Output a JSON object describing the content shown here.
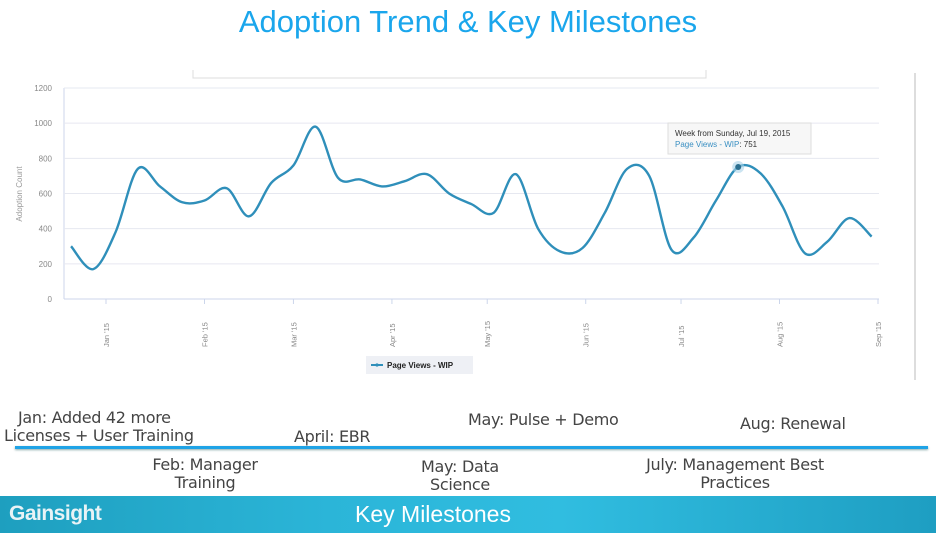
{
  "slide_title": "Adoption Trend & Key Milestones",
  "chart_data": {
    "type": "line",
    "ylabel": "Adoption Count",
    "ylim": [
      0,
      1200
    ],
    "yticks": [
      0,
      200,
      400,
      600,
      800,
      1000,
      1200
    ],
    "xticks": [
      "Jan '15",
      "Feb '15",
      "Mar '15",
      "Apr '15",
      "May '15",
      "Jun '15",
      "Jul '15",
      "Aug '15",
      "Sep '15"
    ],
    "grid": true,
    "legend_placement": "bottom",
    "series": [
      {
        "name": "Page Views - WIP",
        "color": "#2f8fba",
        "x_start": "2014-12-21",
        "x_interval": "weekly",
        "values": [
          300,
          170,
          380,
          740,
          640,
          550,
          560,
          630,
          470,
          660,
          760,
          980,
          690,
          680,
          640,
          670,
          710,
          600,
          540,
          490,
          710,
          400,
          270,
          290,
          490,
          740,
          700,
          280,
          350,
          560,
          751,
          715,
          525,
          260,
          325,
          460,
          355
        ]
      }
    ],
    "tooltip": {
      "title": "Week from Sunday, Jul 19, 2015",
      "series": "Page Views - WIP",
      "value": ": 751"
    }
  },
  "milestones": {
    "jan_1": "Jan: Added 42 more",
    "jan_2": "Licenses +  User Training",
    "april": "April: EBR",
    "may_pulse": "May: Pulse + Demo",
    "aug": "Aug: Renewal",
    "feb_1": "Feb: Manager",
    "feb_2": "Training",
    "may_ds_1": "May: Data",
    "may_ds_2": "Science",
    "july_1": "July: Management Best",
    "july_2": "Practices"
  },
  "banner": {
    "logo": "Gainsight",
    "title": "Key Milestones"
  }
}
